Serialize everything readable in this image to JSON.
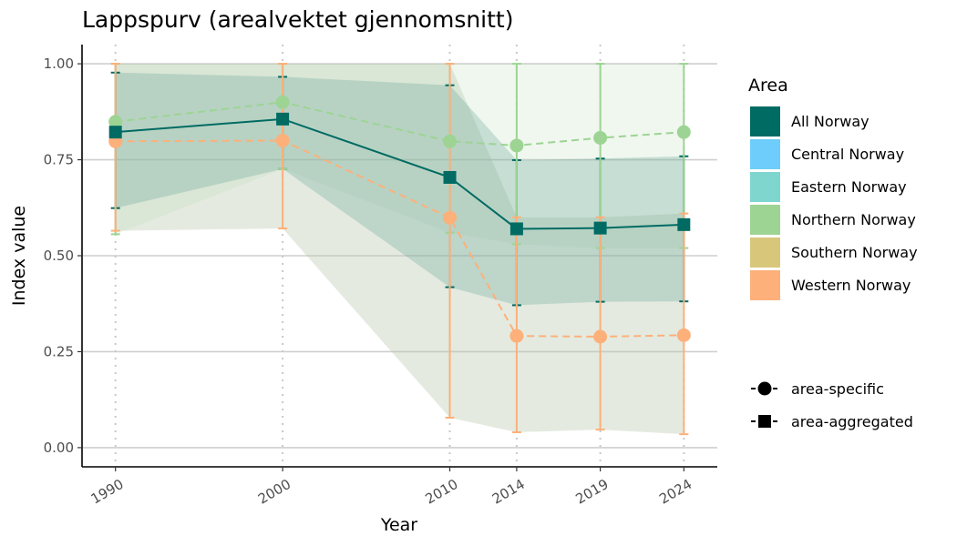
{
  "chart_data": {
    "type": "line",
    "title": "Lappspurv (arealvektet gjennomsnitt)",
    "xlabel": "Year",
    "ylabel": "Index value",
    "x": [
      1990,
      2000,
      2010,
      2014,
      2019,
      2024
    ],
    "x_tick_labels": [
      "1990",
      "2000",
      "2010",
      "2014",
      "2019",
      "2024"
    ],
    "y_ticks": [
      0,
      0.25,
      0.5,
      0.75,
      1.0
    ],
    "y_tick_labels": [
      "0.00",
      "0.25",
      "0.50",
      "0.75",
      "1.00"
    ],
    "xlim": [
      1988,
      2026
    ],
    "ylim": [
      -0.05,
      1.05
    ],
    "grid": "horizontal-major",
    "legend_placement": "right",
    "series": [
      {
        "name": "All Norway",
        "color": "#006b63",
        "marker": "square",
        "line": "solid",
        "values": [
          0.822,
          0.856,
          0.704,
          0.57,
          0.572,
          0.581
        ],
        "err_lower": [
          0.624,
          0.726,
          0.418,
          0.371,
          0.38,
          0.381
        ],
        "err_upper": [
          0.977,
          0.966,
          0.944,
          0.749,
          0.753,
          0.759
        ],
        "band_lower": [
          0.624,
          0.726,
          0.418,
          0.371,
          0.38,
          0.381
        ],
        "band_upper": [
          0.977,
          0.966,
          0.944,
          0.749,
          0.753,
          0.759
        ]
      },
      {
        "name": "Northern Norway",
        "color": "#9dd494",
        "marker": "circle",
        "line": "dashed",
        "values": [
          0.849,
          0.9,
          0.798,
          0.787,
          0.807,
          0.822
        ],
        "err_lower": [
          0.556,
          0.726,
          0.56,
          0.53,
          0.52,
          0.52
        ],
        "err_upper": [
          1.0,
          1.0,
          1.0,
          1.0,
          1.0,
          1.0
        ],
        "band_lower": [
          0.556,
          0.726,
          0.56,
          0.53,
          0.52,
          0.52
        ],
        "band_upper": [
          1.0,
          1.0,
          1.0,
          1.0,
          1.0,
          1.0
        ]
      },
      {
        "name": "Western Norway",
        "color": "#fdb07a",
        "marker": "circle",
        "line": "dashed",
        "values": [
          0.798,
          0.8,
          0.599,
          0.291,
          0.289,
          0.293
        ],
        "err_lower": [
          0.565,
          0.571,
          0.078,
          0.04,
          0.047,
          0.035
        ],
        "err_upper": [
          1.0,
          1.0,
          1.0,
          0.6,
          0.6,
          0.61
        ],
        "band_lower": [
          0.565,
          0.571,
          0.078,
          0.04,
          0.047,
          0.035
        ],
        "band_upper": [
          1.0,
          1.0,
          1.0,
          0.6,
          0.6,
          0.61
        ]
      }
    ],
    "legend": {
      "title": "Area",
      "entries": [
        {
          "label": "All Norway",
          "color": "#006b63"
        },
        {
          "label": "Central Norway",
          "color": "#6ecdfa"
        },
        {
          "label": "Eastern Norway",
          "color": "#7ed6cf"
        },
        {
          "label": "Northern Norway",
          "color": "#9dd494"
        },
        {
          "label": "Southern Norway",
          "color": "#d8c77a"
        },
        {
          "label": "Western Norway",
          "color": "#fdb07a"
        }
      ],
      "shape_entries": [
        {
          "label": "area-specific",
          "marker": "circle"
        },
        {
          "label": "area-aggregated",
          "marker": "square"
        }
      ]
    }
  }
}
